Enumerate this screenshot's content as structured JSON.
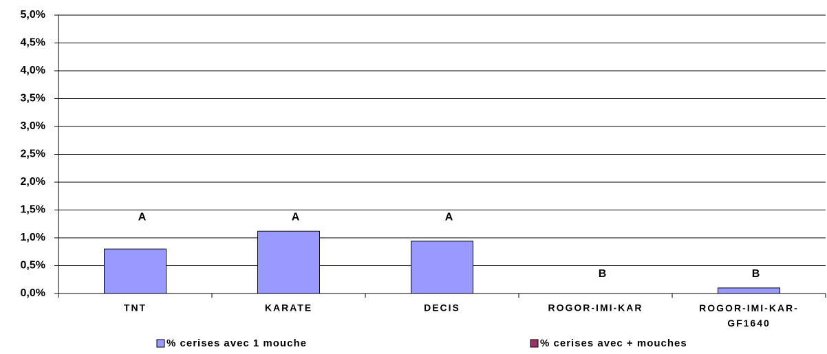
{
  "chart_data": {
    "type": "bar",
    "categories": [
      "TNT",
      "KARATE",
      "DECIS",
      "ROGOR-IMI-KAR",
      "ROGOR-IMI-KAR-GF1640"
    ],
    "series": [
      {
        "name": "% cerises avec 1 mouche",
        "color": "#9999ff",
        "values": [
          0.8,
          1.12,
          0.94,
          0,
          0.1
        ]
      },
      {
        "name": "% cerises avec + mouches",
        "color": "#993366",
        "values": [
          0,
          0,
          0,
          0,
          0
        ]
      }
    ],
    "annotations": [
      "A",
      "A",
      "A",
      "B",
      "B"
    ],
    "ylim": [
      0,
      5
    ],
    "yticks": [
      {
        "value": 0,
        "label": "0,0%"
      },
      {
        "value": 0.5,
        "label": "0,5%"
      },
      {
        "value": 1,
        "label": "1,0%"
      },
      {
        "value": 1.5,
        "label": "1,5%"
      },
      {
        "value": 2,
        "label": "2,0%"
      },
      {
        "value": 2.5,
        "label": "2,5%"
      },
      {
        "value": 3,
        "label": "3,0%"
      },
      {
        "value": 3.5,
        "label": "3,5%"
      },
      {
        "value": 4,
        "label": "4,0%"
      },
      {
        "value": 4.5,
        "label": "4,5%"
      },
      {
        "value": 5,
        "label": "5,0%"
      }
    ],
    "grid": true,
    "legend": "bottom"
  }
}
